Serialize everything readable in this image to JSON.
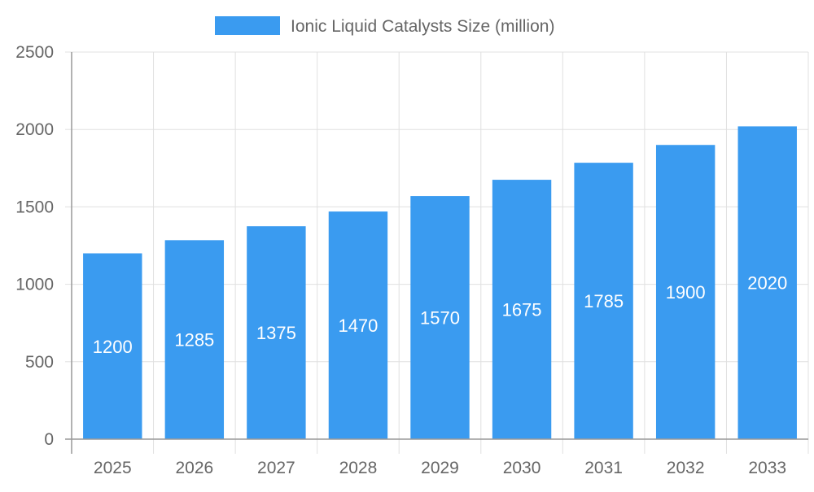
{
  "chart_data": {
    "type": "bar",
    "title": "",
    "xlabel": "",
    "ylabel": "",
    "categories": [
      "2025",
      "2026",
      "2027",
      "2028",
      "2029",
      "2030",
      "2031",
      "2032",
      "2033"
    ],
    "series": [
      {
        "name": "Ionic Liquid Catalysts Size (million)",
        "values": [
          1200,
          1285,
          1375,
          1470,
          1570,
          1675,
          1785,
          1900,
          2020
        ]
      }
    ],
    "ylim": [
      0,
      2500
    ],
    "yticks": [
      0,
      500,
      1000,
      1500,
      2000,
      2500
    ],
    "grid": true,
    "legend_position": "top",
    "data_labels": true,
    "colors": {
      "bar": "#3a9bf0",
      "grid": "#e0e0e0",
      "axis": "#999999",
      "text": "#666666",
      "label": "#ffffff"
    }
  }
}
